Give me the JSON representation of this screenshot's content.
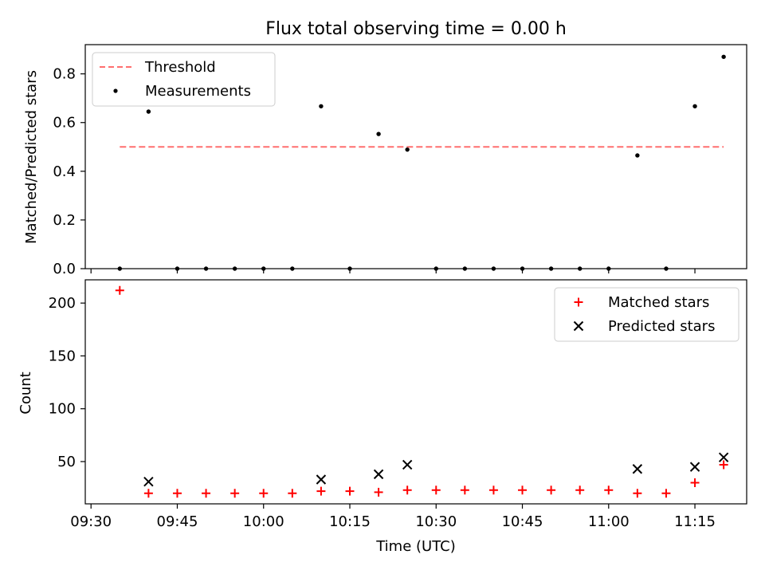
{
  "title": "Flux total observing time = 0.00 h",
  "chart_data": [
    {
      "type": "scatter",
      "panel": "top",
      "ylabel": "Matched/Predicted stars",
      "ylim": [
        0,
        0.92
      ],
      "yticks": [
        0.0,
        0.2,
        0.4,
        0.6,
        0.8
      ],
      "ytick_labels": [
        "0.0",
        "0.2",
        "0.4",
        "0.6",
        "0.8"
      ],
      "legend_position": "top-left",
      "series": [
        {
          "name": "Threshold",
          "kind": "line",
          "style": "dashed",
          "color": "#ff6f6f",
          "points": [
            {
              "t": "09:35",
              "y": 0.5
            },
            {
              "t": "11:20",
              "y": 0.5
            }
          ]
        },
        {
          "name": "Measurements",
          "kind": "scatter",
          "marker": "dot",
          "color": "#000000",
          "points": [
            {
              "t": "09:35",
              "y": 0.0
            },
            {
              "t": "09:40",
              "y": 0.645
            },
            {
              "t": "09:45",
              "y": 0.0
            },
            {
              "t": "09:50",
              "y": 0.0
            },
            {
              "t": "09:55",
              "y": 0.0
            },
            {
              "t": "10:00",
              "y": 0.0
            },
            {
              "t": "10:05",
              "y": 0.0
            },
            {
              "t": "10:10",
              "y": 0.667
            },
            {
              "t": "10:15",
              "y": 0.0
            },
            {
              "t": "10:20",
              "y": 0.553
            },
            {
              "t": "10:25",
              "y": 0.489
            },
            {
              "t": "10:30",
              "y": 0.0
            },
            {
              "t": "10:35",
              "y": 0.0
            },
            {
              "t": "10:40",
              "y": 0.0
            },
            {
              "t": "10:45",
              "y": 0.0
            },
            {
              "t": "10:50",
              "y": 0.0
            },
            {
              "t": "10:55",
              "y": 0.0
            },
            {
              "t": "11:00",
              "y": 0.0
            },
            {
              "t": "11:05",
              "y": 0.465
            },
            {
              "t": "11:10",
              "y": 0.0
            },
            {
              "t": "11:15",
              "y": 0.667
            },
            {
              "t": "11:20",
              "y": 0.87
            }
          ]
        }
      ]
    },
    {
      "type": "scatter",
      "panel": "bottom",
      "xlabel": "Time (UTC)",
      "ylabel": "Count",
      "xlim": [
        "09:29",
        "11:24"
      ],
      "ylim": [
        10,
        222
      ],
      "xticks": [
        "09:30",
        "09:45",
        "10:00",
        "10:15",
        "10:30",
        "10:45",
        "11:00",
        "11:15"
      ],
      "yticks": [
        50,
        100,
        150,
        200
      ],
      "ytick_labels": [
        "50",
        "100",
        "150",
        "200"
      ],
      "legend_position": "top-right",
      "series": [
        {
          "name": "Matched stars",
          "marker": "plus",
          "color": "#ff0000",
          "points": [
            {
              "t": "09:35",
              "y": 212
            },
            {
              "t": "09:40",
              "y": 20
            },
            {
              "t": "09:45",
              "y": 20
            },
            {
              "t": "09:50",
              "y": 20
            },
            {
              "t": "09:55",
              "y": 20
            },
            {
              "t": "10:00",
              "y": 20
            },
            {
              "t": "10:05",
              "y": 20
            },
            {
              "t": "10:10",
              "y": 22
            },
            {
              "t": "10:15",
              "y": 22
            },
            {
              "t": "10:20",
              "y": 21
            },
            {
              "t": "10:25",
              "y": 23
            },
            {
              "t": "10:30",
              "y": 23
            },
            {
              "t": "10:35",
              "y": 23
            },
            {
              "t": "10:40",
              "y": 23
            },
            {
              "t": "10:45",
              "y": 23
            },
            {
              "t": "10:50",
              "y": 23
            },
            {
              "t": "10:55",
              "y": 23
            },
            {
              "t": "11:00",
              "y": 23
            },
            {
              "t": "11:05",
              "y": 20
            },
            {
              "t": "11:10",
              "y": 20
            },
            {
              "t": "11:15",
              "y": 30
            },
            {
              "t": "11:20",
              "y": 47
            }
          ]
        },
        {
          "name": "Predicted stars",
          "marker": "x",
          "color": "#000000",
          "points": [
            {
              "t": "09:40",
              "y": 31
            },
            {
              "t": "10:10",
              "y": 33
            },
            {
              "t": "10:20",
              "y": 38
            },
            {
              "t": "10:25",
              "y": 47
            },
            {
              "t": "11:05",
              "y": 43
            },
            {
              "t": "11:15",
              "y": 45
            },
            {
              "t": "11:20",
              "y": 54
            }
          ]
        }
      ]
    }
  ]
}
